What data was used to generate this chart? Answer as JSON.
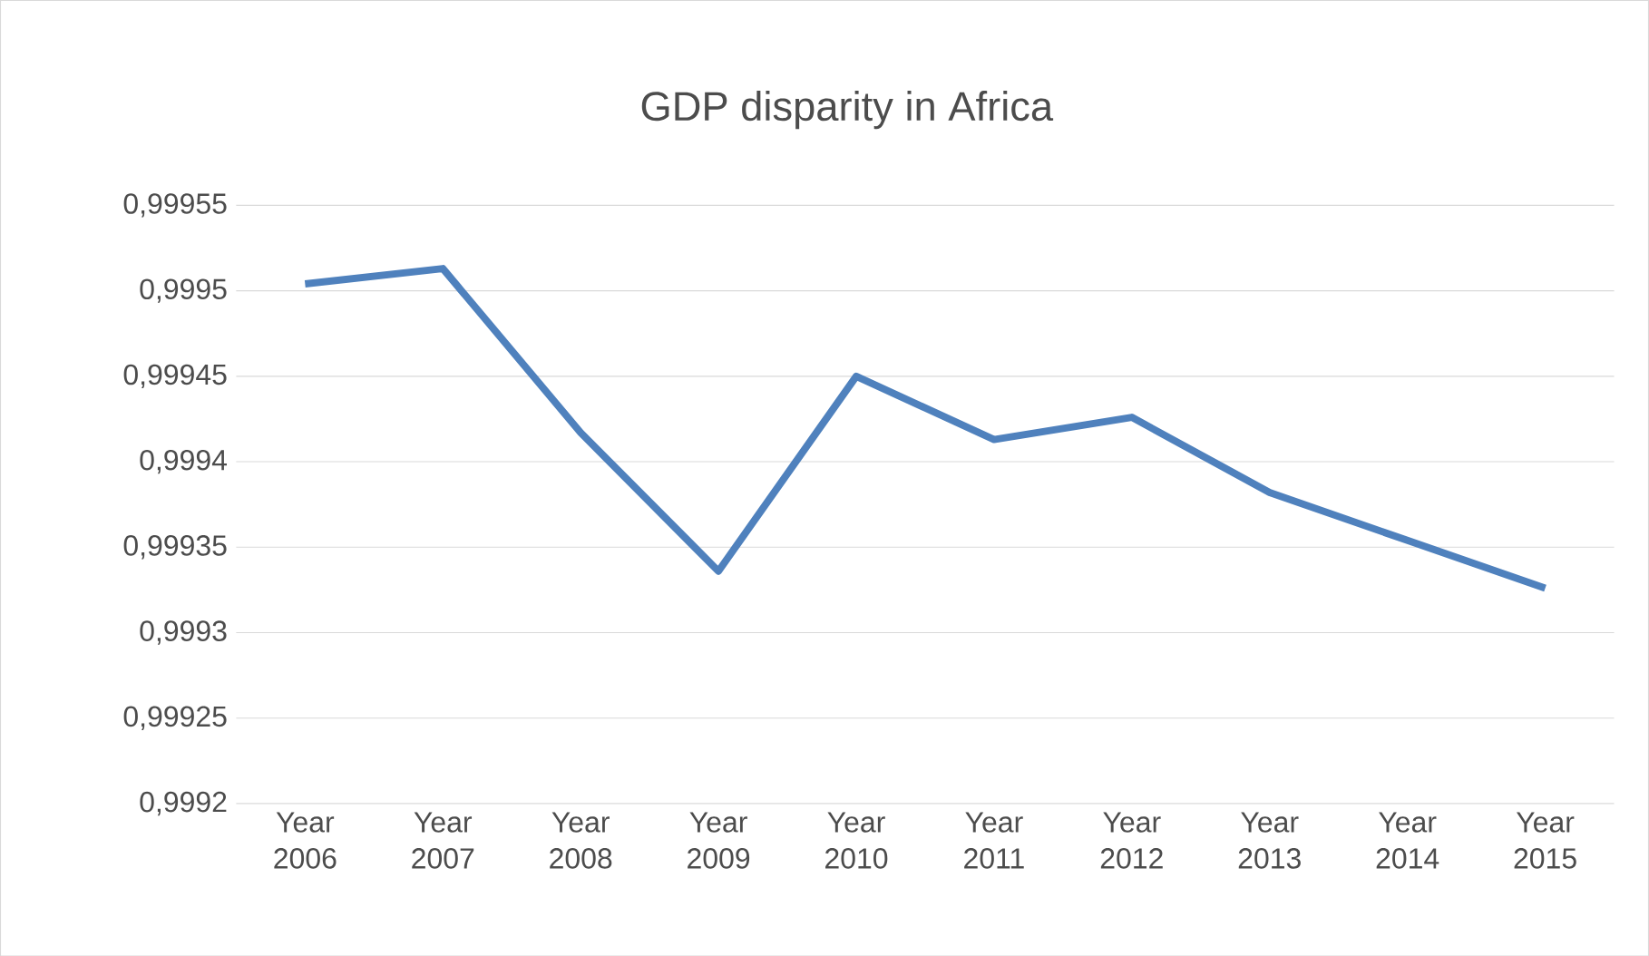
{
  "chart_data": {
    "type": "line",
    "title": "GDP disparity in Africa",
    "categories": [
      "Year 2006",
      "Year 2007",
      "Year 2008",
      "Year 2009",
      "Year 2010",
      "Year 2011",
      "Year 2012",
      "Year 2013",
      "Year 2014",
      "Year 2015"
    ],
    "series": [
      {
        "color": "#4f81bd",
        "values": [
          0.999504,
          0.999513,
          0.999417,
          0.999336,
          0.99945,
          0.999413,
          0.999426,
          0.999382,
          0.999354,
          0.999326
        ]
      }
    ],
    "ylim": [
      0.9992,
      0.99955
    ],
    "yticks": [
      {
        "value": 0.9992,
        "label": "0,9992"
      },
      {
        "value": 0.99925,
        "label": "0,99925"
      },
      {
        "value": 0.9993,
        "label": "0,9993"
      },
      {
        "value": 0.99935,
        "label": "0,99935"
      },
      {
        "value": 0.9994,
        "label": "0,9994"
      },
      {
        "value": 0.99945,
        "label": "0,99945"
      },
      {
        "value": 0.9995,
        "label": "0,9995"
      },
      {
        "value": 0.99955,
        "label": "0,99955"
      }
    ],
    "grid": "y",
    "marker": "none",
    "line_style": "solid"
  }
}
